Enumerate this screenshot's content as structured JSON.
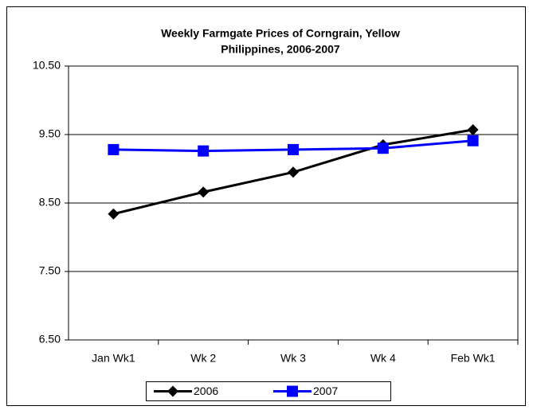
{
  "chart_data": {
    "type": "line",
    "title": "Weekly Farmgate Prices of Corngrain, Yellow",
    "subtitle": "Philippines, 2006-2007",
    "categories": [
      "Jan Wk1",
      "Wk 2",
      "Wk 3",
      "Wk 4",
      "Feb Wk1"
    ],
    "series": [
      {
        "name": "2006",
        "color": "#000000",
        "marker": "diamond",
        "values": [
          8.34,
          8.66,
          8.95,
          9.35,
          9.57
        ]
      },
      {
        "name": "2007",
        "color": "#0000ff",
        "marker": "square",
        "values": [
          9.28,
          9.26,
          9.28,
          9.3,
          9.41
        ]
      }
    ],
    "ylim": [
      6.5,
      10.5
    ],
    "yticks": [
      {
        "value": 6.5,
        "label": "6.50"
      },
      {
        "value": 7.5,
        "label": "7.50"
      },
      {
        "value": 8.5,
        "label": "8.50"
      },
      {
        "value": 9.5,
        "label": "9.50"
      },
      {
        "value": 10.5,
        "label": "10.50"
      }
    ],
    "grid": true,
    "legend": "bottom"
  }
}
